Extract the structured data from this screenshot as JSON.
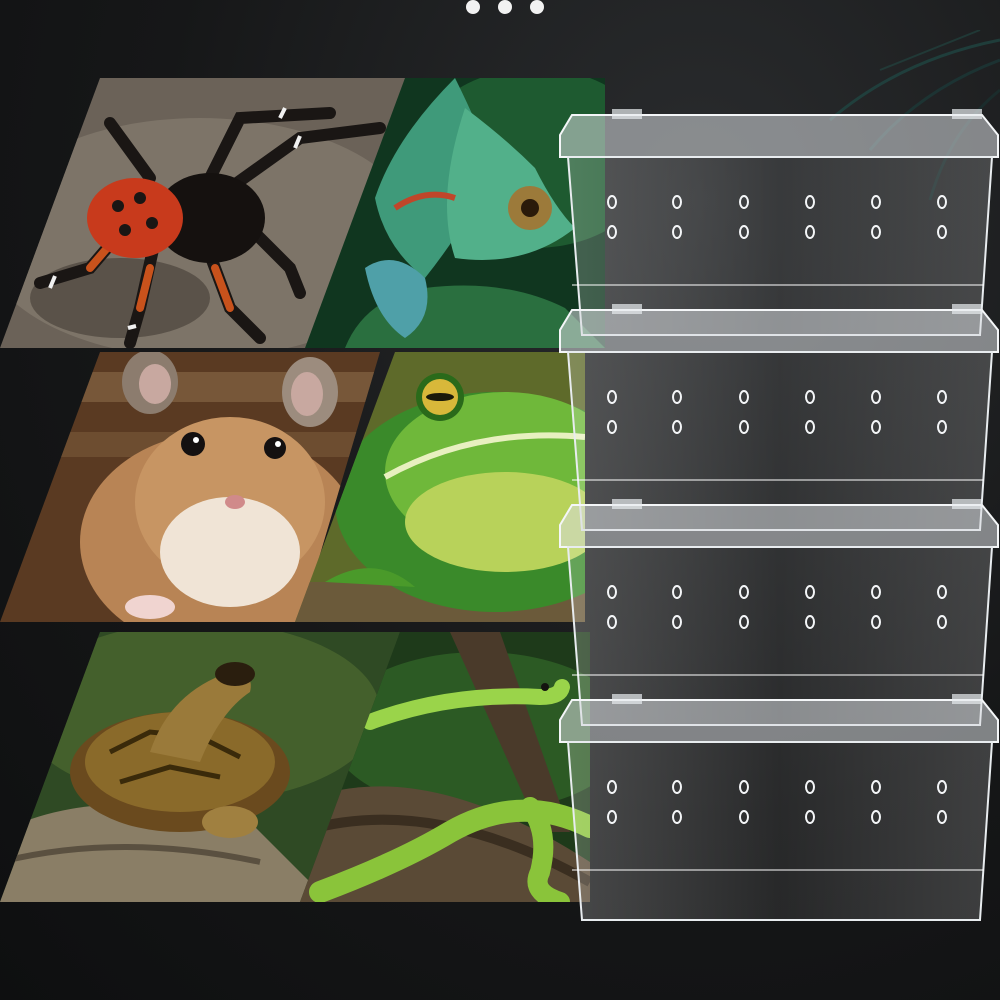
{
  "pagination": {
    "count": 3,
    "color": "#f2f2f2"
  },
  "colors": {
    "background": "#161718",
    "spider_body": "#c83a1c",
    "chameleon": "#3f9a7a",
    "hamster": "#b88455",
    "frog": "#6fb83a",
    "turtle": "#7a5a2a",
    "snake": "#9ad44a",
    "tank_plastic": "#e8ecef"
  },
  "panels": [
    {
      "icon": "spider-image"
    },
    {
      "icon": "chameleon-image"
    },
    {
      "icon": "hamster-image"
    },
    {
      "icon": "frog-image"
    },
    {
      "icon": "turtle-image"
    },
    {
      "icon": "snake-image"
    }
  ],
  "product": {
    "icon": "stacked-clear-terrarium-boxes",
    "tank_count": 4
  }
}
